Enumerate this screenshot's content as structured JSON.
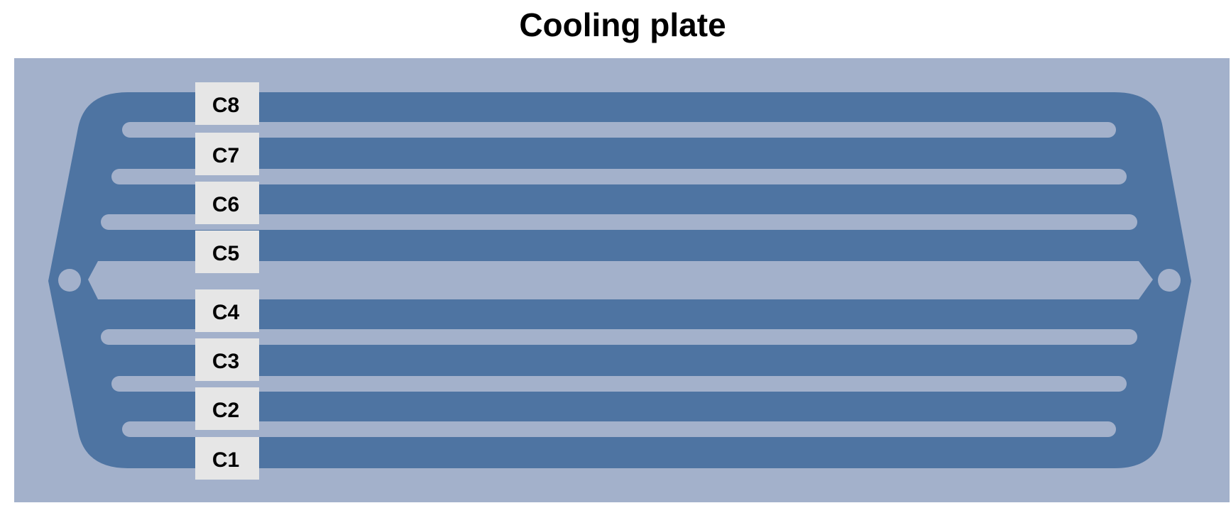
{
  "title": "Cooling plate",
  "colors": {
    "background_plate": "#a3b1cb",
    "channel": "#4e74a2",
    "label_box": "#e6e6e6"
  },
  "channels": [
    {
      "label": "C8"
    },
    {
      "label": "C7"
    },
    {
      "label": "C6"
    },
    {
      "label": "C5"
    },
    {
      "label": "C4"
    },
    {
      "label": "C3"
    },
    {
      "label": "C2"
    },
    {
      "label": "C1"
    }
  ]
}
